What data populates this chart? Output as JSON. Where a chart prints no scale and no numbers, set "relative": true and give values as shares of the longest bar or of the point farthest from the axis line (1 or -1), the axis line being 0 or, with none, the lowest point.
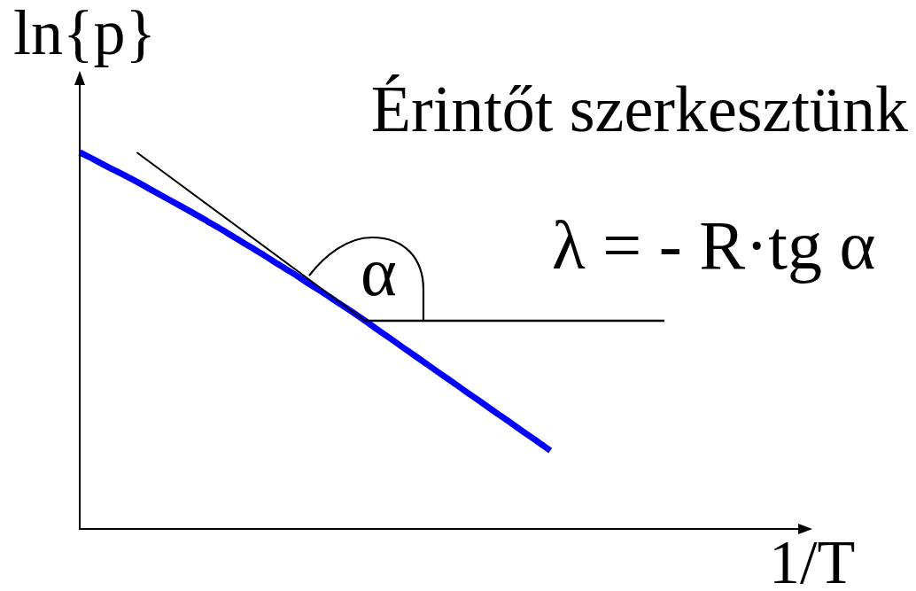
{
  "chart_data": {
    "type": "line",
    "relative": true,
    "marker": "none",
    "title": "Érintőt szerkesztünk",
    "xlabel": "1/T",
    "ylabel": "ln{p}",
    "annotations": [
      "α",
      "λ = - R·tg α"
    ],
    "categories": [
      null,
      null,
      null,
      null,
      null,
      null,
      null,
      null,
      null,
      null,
      null,
      null,
      null,
      null,
      null,
      null,
      null,
      null,
      null,
      null,
      null,
      null,
      null,
      null,
      null,
      null,
      null,
      null,
      null,
      null,
      null,
      null,
      null,
      null,
      null,
      null,
      null,
      null,
      null,
      null,
      null,
      null
    ],
    "series": [
      {
        "color": "#0000ff",
        "values": [
          1.0,
          0.981,
          0.961,
          0.942,
          0.922,
          0.901,
          0.88,
          0.859,
          0.838,
          0.816,
          0.794,
          0.771,
          0.748,
          0.725,
          0.701,
          0.678,
          0.653,
          0.629,
          0.604,
          0.579,
          0.553,
          0.526,
          0.5,
          0.473,
          0.447,
          0.42,
          0.394,
          0.367,
          0.341,
          0.314,
          0.288,
          0.261,
          0.235,
          0.208,
          null,
          null,
          null,
          null,
          null,
          null,
          null,
          null
        ]
      },
      {
        "color": "#000000",
        "values": [
          null,
          null,
          null,
          null,
          1.0,
          null,
          null,
          null,
          null,
          null,
          null,
          null,
          null,
          null,
          null,
          null,
          null,
          null,
          null,
          null,
          0.553,
          null,
          null,
          null,
          null,
          null,
          null,
          null,
          null,
          null,
          null,
          null,
          null,
          null,
          null,
          null,
          null,
          null,
          null,
          null,
          null,
          null
        ]
      },
      {
        "color": "#000000",
        "values": [
          null,
          null,
          null,
          null,
          null,
          null,
          null,
          null,
          null,
          null,
          null,
          null,
          null,
          null,
          null,
          null,
          null,
          null,
          null,
          null,
          0.553,
          null,
          null,
          null,
          null,
          null,
          null,
          null,
          null,
          null,
          null,
          null,
          null,
          null,
          null,
          null,
          null,
          null,
          null,
          null,
          null,
          0.553
        ]
      }
    ]
  }
}
